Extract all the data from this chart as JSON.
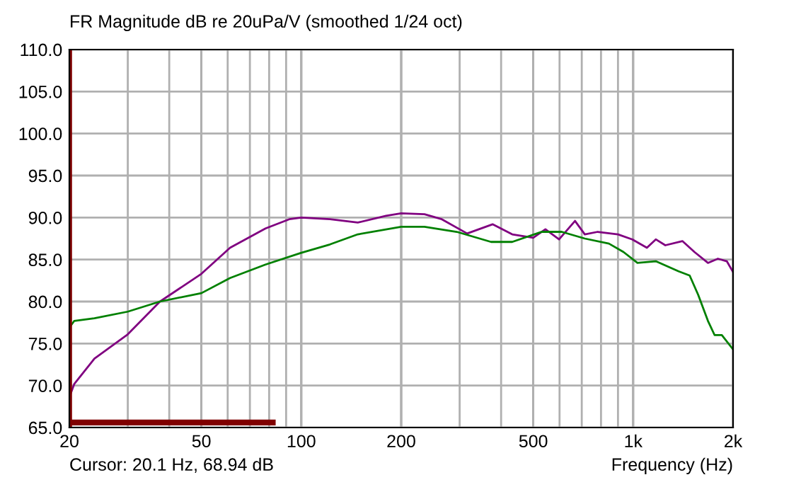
{
  "chart_data": {
    "type": "line",
    "title": "FR Magnitude dB re 20uPa/V (smoothed 1/24 oct)",
    "xlabel": "Frequency (Hz)",
    "log": "x",
    "grid": true,
    "line_style": "solid",
    "marker": "none",
    "annotations": [
      "Cursor: 20.1 Hz, 68.94 dB"
    ],
    "xlim": [
      20,
      2000
    ],
    "ylim": [
      65,
      110
    ],
    "xticks": [
      20,
      {
        "value": 30,
        "label": null
      },
      {
        "value": 40,
        "label": null
      },
      50,
      {
        "value": 60,
        "label": null
      },
      {
        "value": 70,
        "label": null
      },
      {
        "value": 80,
        "label": null
      },
      {
        "value": 90,
        "label": null
      },
      100,
      200,
      {
        "value": 300,
        "label": null
      },
      {
        "value": 400,
        "label": null
      },
      500,
      {
        "value": 600,
        "label": null
      },
      {
        "value": 700,
        "label": null
      },
      {
        "value": 800,
        "label": null
      },
      {
        "value": 900,
        "label": null
      },
      {
        "value": 1000,
        "label": "1k"
      },
      {
        "value": 2000,
        "label": "2k"
      }
    ],
    "yticks": [
      {
        "value": 65,
        "label": "65.0"
      },
      {
        "value": 70,
        "label": "70.0"
      },
      {
        "value": 75,
        "label": "75.0"
      },
      {
        "value": 80,
        "label": "80.0"
      },
      {
        "value": 85,
        "label": "85.0"
      },
      {
        "value": 90,
        "label": "90.0"
      },
      {
        "value": 95,
        "label": "95.0"
      },
      {
        "value": 100,
        "label": "100.0"
      },
      {
        "value": 105,
        "label": "105.0"
      },
      {
        "value": 110,
        "label": "110.0"
      }
    ],
    "ref_lines": [
      {
        "axis": "x",
        "value": 20.1,
        "color": "#800000"
      }
    ],
    "series": [
      {
        "color": "#800080",
        "x": [
          20,
          20.7,
          23.8,
          30,
          37.5,
          50,
          61,
          78,
          92,
          100,
          122,
          148,
          180,
          200,
          235,
          265,
          316,
          377,
          432,
          500,
          544,
          598,
          668,
          715,
          782,
          900,
          994,
          1100,
          1170,
          1250,
          1407,
          1530,
          1680,
          1800,
          1915,
          2000
        ],
        "values": [
          68.6,
          70.2,
          73.2,
          76.1,
          80.0,
          83.3,
          86.4,
          88.7,
          89.8,
          90.0,
          89.8,
          89.4,
          90.2,
          90.5,
          90.4,
          89.8,
          88.1,
          89.2,
          88.0,
          87.6,
          88.6,
          87.4,
          89.6,
          88.0,
          88.3,
          88.0,
          87.4,
          86.4,
          87.4,
          86.7,
          87.2,
          85.9,
          84.6,
          85.1,
          84.8,
          83.5
        ]
      },
      {
        "color": "#008000",
        "x": [
          20,
          20.7,
          23.8,
          30,
          37.5,
          50,
          61,
          78,
          100,
          122,
          148,
          200,
          235,
          294,
          373,
          432,
          530,
          609,
          715,
          845,
          935,
          1030,
          1170,
          1370,
          1480,
          1570,
          1680,
          1760,
          1850,
          2000
        ],
        "values": [
          76.9,
          77.7,
          78.0,
          78.8,
          80.0,
          81.0,
          82.8,
          84.4,
          85.8,
          86.8,
          88.0,
          88.9,
          88.9,
          88.3,
          87.1,
          87.1,
          88.3,
          88.3,
          87.5,
          86.9,
          85.9,
          84.6,
          84.8,
          83.6,
          83.1,
          80.8,
          77.7,
          76.0,
          76.0,
          74.3
        ]
      },
      {
        "color": "#800000",
        "x": [
          20,
          82
        ],
        "values": [
          65.6,
          65.6
        ]
      }
    ]
  }
}
